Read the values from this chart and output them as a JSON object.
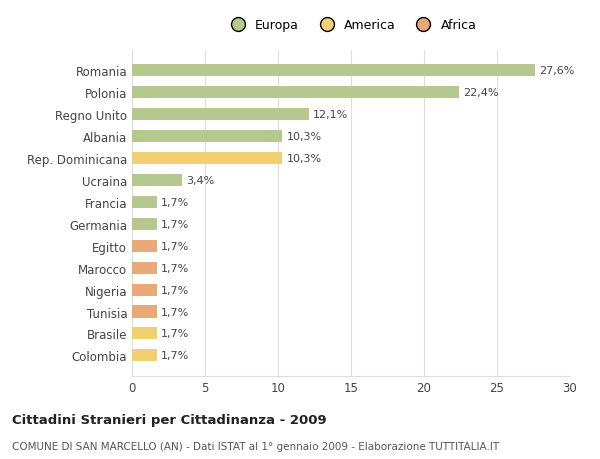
{
  "categories": [
    "Colombia",
    "Brasile",
    "Tunisia",
    "Nigeria",
    "Marocco",
    "Egitto",
    "Germania",
    "Francia",
    "Ucraina",
    "Rep. Dominicana",
    "Albania",
    "Regno Unito",
    "Polonia",
    "Romania"
  ],
  "values": [
    1.7,
    1.7,
    1.7,
    1.7,
    1.7,
    1.7,
    1.7,
    1.7,
    3.4,
    10.3,
    10.3,
    12.1,
    22.4,
    27.6
  ],
  "continents": [
    "America",
    "America",
    "Africa",
    "Africa",
    "Africa",
    "Africa",
    "Europa",
    "Europa",
    "Europa",
    "America",
    "Europa",
    "Europa",
    "Europa",
    "Europa"
  ],
  "colors": {
    "Europa": "#b5c98e",
    "America": "#f0d070",
    "Africa": "#e8a878"
  },
  "labels": [
    "1,7%",
    "1,7%",
    "1,7%",
    "1,7%",
    "1,7%",
    "1,7%",
    "1,7%",
    "1,7%",
    "3,4%",
    "10,3%",
    "10,3%",
    "12,1%",
    "22,4%",
    "27,6%"
  ],
  "title": "Cittadini Stranieri per Cittadinanza - 2009",
  "subtitle": "COMUNE DI SAN MARCELLO (AN) - Dati ISTAT al 1° gennaio 2009 - Elaborazione TUTTITALIA.IT",
  "xlim": [
    0,
    30
  ],
  "xticks": [
    0,
    5,
    10,
    15,
    20,
    25,
    30
  ],
  "background_color": "#ffffff",
  "grid_color": "#dddddd",
  "bar_height": 0.55
}
